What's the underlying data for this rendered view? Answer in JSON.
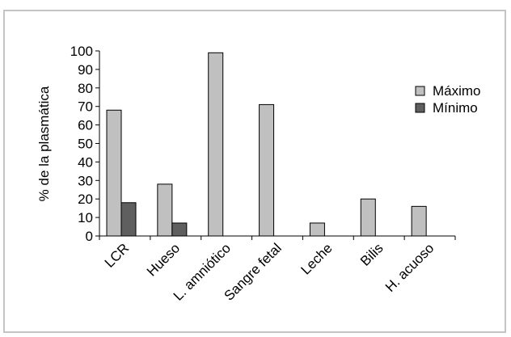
{
  "chart_data": {
    "type": "bar",
    "title": "",
    "xlabel": "",
    "ylabel": "% de la plasmática",
    "categories": [
      "LCR",
      "Hueso",
      "L. amniótico",
      "Sangre fetal",
      "Leche",
      "Bilis",
      "H. acuoso"
    ],
    "series": [
      {
        "name": "Máximo",
        "color": "#c0c0c0",
        "values": [
          68,
          28,
          99,
          71,
          7,
          20,
          16
        ]
      },
      {
        "name": "Mínimo",
        "color": "#5f5f5f",
        "values": [
          18,
          7,
          null,
          null,
          null,
          null,
          null
        ]
      }
    ],
    "ylim": [
      0,
      100
    ],
    "yticks": [
      0,
      10,
      20,
      30,
      40,
      50,
      60,
      70,
      80,
      90,
      100
    ],
    "grid": false,
    "legend_position": "right"
  }
}
